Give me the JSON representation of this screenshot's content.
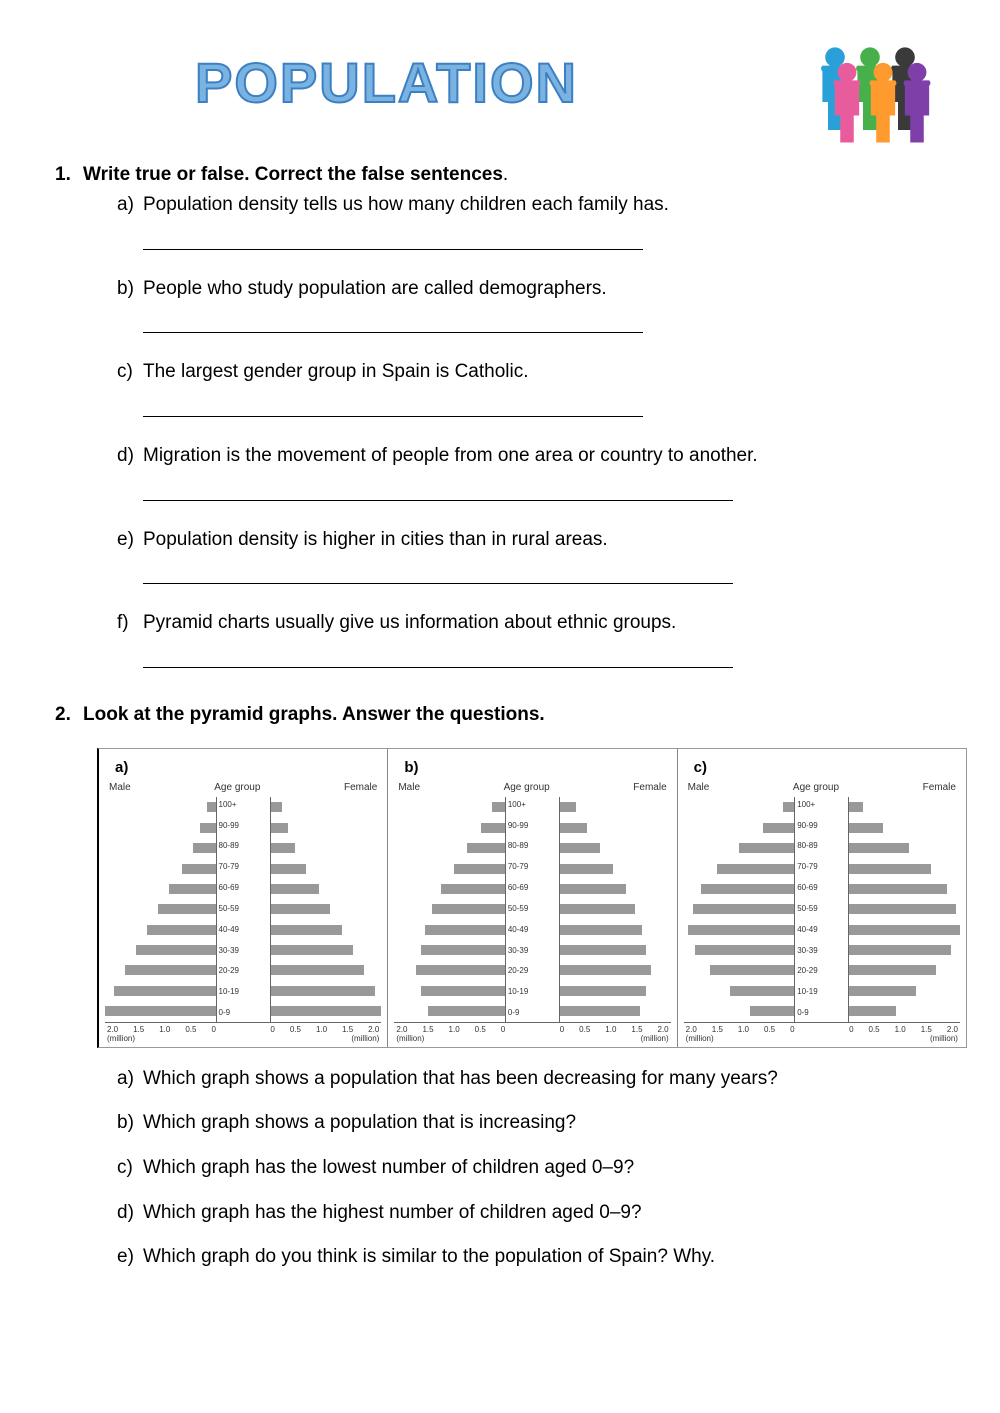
{
  "title": "POPULATION",
  "title_color_fill": "#a8d0f0",
  "title_color_stroke": "#2d6bb0",
  "section1": {
    "num": "1.",
    "heading": "Write true or false. Correct the false sentences",
    "period": ".",
    "items": [
      {
        "letter": "a)",
        "text": "Population density tells us how many children each family has.",
        "line_class": "la"
      },
      {
        "letter": "b)",
        "text": "People who study population are called demographers.",
        "line_class": "la"
      },
      {
        "letter": "c)",
        "text": "The largest gender group in Spain is Catholic.",
        "line_class": "la"
      },
      {
        "letter": "d)",
        "text": "Migration is the movement of people from one area or country to another.",
        "line_class": "lb"
      },
      {
        "letter": "e)",
        "text": "Population density is higher in cities than in rural areas.",
        "line_class": "lb"
      },
      {
        "letter": "f)",
        "text": "Pyramid charts usually give us information about ethnic groups.",
        "line_class": "lb"
      }
    ]
  },
  "section2": {
    "num": "2.",
    "heading": "Look at the pyramid graphs. Answer the questions.",
    "questions": [
      {
        "letter": "a)",
        "text": "Which graph shows a population that has been decreasing for many years?"
      },
      {
        "letter": "b)",
        "text": "Which graph shows a population that is increasing?"
      },
      {
        "letter": "c)",
        "text": "Which graph has the lowest number of children aged 0–9?"
      },
      {
        "letter": "d)",
        "text": "Which graph has the highest number of children aged 0–9?"
      },
      {
        "letter": "e)",
        "text": "Which graph do you think is similar to the population of Spain? Why."
      }
    ]
  },
  "pyramids": {
    "labels": {
      "male": "Male",
      "age": "Age group",
      "female": "Female",
      "unit": "(million)"
    },
    "age_groups": [
      "100+",
      "90-99",
      "80-89",
      "70-79",
      "60-69",
      "50-59",
      "40-49",
      "30-39",
      "20-29",
      "10-19",
      "0-9"
    ],
    "xticks_left": [
      "2.0",
      "1.5",
      "1.0",
      "0.5",
      "0"
    ],
    "xticks_right": [
      "0",
      "0.5",
      "1.0",
      "1.5",
      "2.0"
    ],
    "bar_color": "#999999",
    "grid_color": "#666666",
    "panels": [
      {
        "letter": "a)",
        "male": [
          8,
          14,
          20,
          30,
          42,
          52,
          62,
          72,
          82,
          92,
          100
        ],
        "female": [
          10,
          16,
          22,
          32,
          44,
          54,
          64,
          74,
          84,
          94,
          100
        ]
      },
      {
        "letter": "b)",
        "male": [
          12,
          22,
          34,
          46,
          58,
          66,
          72,
          76,
          80,
          76,
          70
        ],
        "female": [
          14,
          24,
          36,
          48,
          60,
          68,
          74,
          78,
          82,
          78,
          72
        ]
      },
      {
        "letter": "c)",
        "male": [
          10,
          28,
          50,
          70,
          84,
          92,
          96,
          90,
          76,
          58,
          40
        ],
        "female": [
          12,
          30,
          54,
          74,
          88,
          96,
          100,
          92,
          78,
          60,
          42
        ]
      }
    ]
  },
  "people_colors": [
    "#2aa0d8",
    "#e85c9e",
    "#48b04b",
    "#ff9a2e",
    "#7e3fa8",
    "#3a3a3a"
  ]
}
